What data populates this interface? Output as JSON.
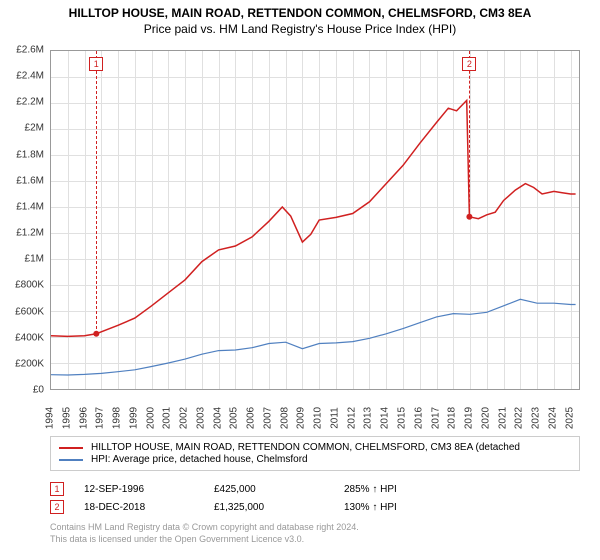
{
  "title": "HILLTOP HOUSE, MAIN ROAD, RETTENDON COMMON, CHELMSFORD, CM3 8EA",
  "subtitle": "Price paid vs. HM Land Registry's House Price Index (HPI)",
  "chart": {
    "type": "line",
    "ylim": [
      0,
      2600000
    ],
    "ytick_step": 200000,
    "y_ticks": [
      "£0",
      "£200K",
      "£400K",
      "£600K",
      "£800K",
      "£1M",
      "£1.2M",
      "£1.4M",
      "£1.6M",
      "£1.8M",
      "£2M",
      "£2.2M",
      "£2.4M",
      "£2.6M"
    ],
    "x_ticks": [
      "1994",
      "1995",
      "1996",
      "1997",
      "1998",
      "1999",
      "2000",
      "2001",
      "2002",
      "2003",
      "2004",
      "2005",
      "2006",
      "2007",
      "2008",
      "2009",
      "2010",
      "2011",
      "2012",
      "2013",
      "2014",
      "2015",
      "2016",
      "2017",
      "2018",
      "2019",
      "2020",
      "2021",
      "2022",
      "2023",
      "2024",
      "2025"
    ],
    "xlim_years": [
      1994,
      2025.5
    ],
    "background_color": "#ffffff",
    "grid_color": "#e0e0e0",
    "axis_fontsize": 10,
    "title_fontsize": 12,
    "series": [
      {
        "name": "property",
        "color": "#d02020",
        "width": 1.5,
        "label": "HILLTOP HOUSE, MAIN ROAD, RETTENDON COMMON, CHELMSFORD, CM3 8EA (detached",
        "points": [
          [
            1994.0,
            410000
          ],
          [
            1995.0,
            405000
          ],
          [
            1996.0,
            410000
          ],
          [
            1996.7,
            425000
          ],
          [
            1997.0,
            440000
          ],
          [
            1998.0,
            490000
          ],
          [
            1999.0,
            545000
          ],
          [
            2000.0,
            640000
          ],
          [
            2001.0,
            740000
          ],
          [
            2002.0,
            840000
          ],
          [
            2003.0,
            980000
          ],
          [
            2004.0,
            1070000
          ],
          [
            2005.0,
            1100000
          ],
          [
            2006.0,
            1170000
          ],
          [
            2007.0,
            1290000
          ],
          [
            2007.8,
            1400000
          ],
          [
            2008.3,
            1330000
          ],
          [
            2009.0,
            1130000
          ],
          [
            2009.5,
            1190000
          ],
          [
            2010.0,
            1300000
          ],
          [
            2011.0,
            1320000
          ],
          [
            2012.0,
            1350000
          ],
          [
            2013.0,
            1440000
          ],
          [
            2014.0,
            1580000
          ],
          [
            2015.0,
            1720000
          ],
          [
            2016.0,
            1890000
          ],
          [
            2017.0,
            2050000
          ],
          [
            2017.7,
            2160000
          ],
          [
            2018.2,
            2140000
          ],
          [
            2018.8,
            2220000
          ],
          [
            2018.96,
            1325000
          ],
          [
            2019.5,
            1310000
          ],
          [
            2020.0,
            1340000
          ],
          [
            2020.5,
            1360000
          ],
          [
            2021.0,
            1450000
          ],
          [
            2021.7,
            1530000
          ],
          [
            2022.3,
            1580000
          ],
          [
            2022.8,
            1550000
          ],
          [
            2023.3,
            1500000
          ],
          [
            2024.0,
            1520000
          ],
          [
            2024.5,
            1510000
          ],
          [
            2025.0,
            1500000
          ],
          [
            2025.3,
            1500000
          ]
        ]
      },
      {
        "name": "hpi",
        "color": "#5080c0",
        "width": 1.2,
        "label": "HPI: Average price, detached house, Chelmsford",
        "points": [
          [
            1994.0,
            110000
          ],
          [
            1995.0,
            108000
          ],
          [
            1996.0,
            112000
          ],
          [
            1997.0,
            120000
          ],
          [
            1998.0,
            133000
          ],
          [
            1999.0,
            148000
          ],
          [
            2000.0,
            173000
          ],
          [
            2001.0,
            200000
          ],
          [
            2002.0,
            230000
          ],
          [
            2003.0,
            268000
          ],
          [
            2004.0,
            295000
          ],
          [
            2005.0,
            300000
          ],
          [
            2006.0,
            318000
          ],
          [
            2007.0,
            350000
          ],
          [
            2008.0,
            360000
          ],
          [
            2009.0,
            310000
          ],
          [
            2010.0,
            350000
          ],
          [
            2011.0,
            355000
          ],
          [
            2012.0,
            365000
          ],
          [
            2013.0,
            390000
          ],
          [
            2014.0,
            425000
          ],
          [
            2015.0,
            465000
          ],
          [
            2016.0,
            510000
          ],
          [
            2017.0,
            555000
          ],
          [
            2018.0,
            580000
          ],
          [
            2019.0,
            575000
          ],
          [
            2020.0,
            590000
          ],
          [
            2021.0,
            640000
          ],
          [
            2022.0,
            690000
          ],
          [
            2023.0,
            660000
          ],
          [
            2024.0,
            660000
          ],
          [
            2025.0,
            650000
          ],
          [
            2025.3,
            650000
          ]
        ]
      }
    ],
    "markers": [
      {
        "id": "1",
        "year": 1996.7,
        "value": 425000,
        "dash_from": 2600000,
        "dash_to": 425000
      },
      {
        "id": "2",
        "year": 2018.96,
        "value": 1325000,
        "dash_from": 2600000,
        "dash_to": 1325000
      }
    ]
  },
  "legend": {
    "items": [
      {
        "color": "#d02020",
        "label": "HILLTOP HOUSE, MAIN ROAD, RETTENDON COMMON, CHELMSFORD, CM3 8EA (detached"
      },
      {
        "color": "#5080c0",
        "label": "HPI: Average price, detached house, Chelmsford"
      }
    ]
  },
  "sales": [
    {
      "id": "1",
      "date": "12-SEP-1996",
      "price": "£425,000",
      "pct": "285% ↑ HPI"
    },
    {
      "id": "2",
      "date": "18-DEC-2018",
      "price": "£1,325,000",
      "pct": "130% ↑ HPI"
    }
  ],
  "footer": {
    "line1": "Contains HM Land Registry data © Crown copyright and database right 2024.",
    "line2": "This data is licensed under the Open Government Licence v3.0."
  }
}
